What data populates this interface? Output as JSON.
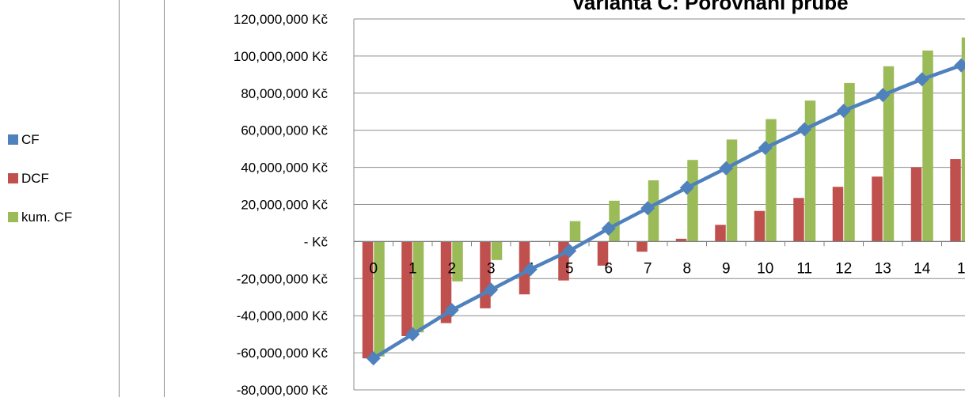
{
  "legend": {
    "items": [
      {
        "label": "CF",
        "color": "#4F81BD"
      },
      {
        "label": "DCF",
        "color": "#C0504D"
      },
      {
        "label": "kum. CF",
        "color": "#9BBB59"
      }
    ]
  },
  "chart_data": {
    "type": "bar",
    "title": "Varianta C: Porovnání  průbě",
    "xlabel": "",
    "ylabel": "",
    "categories": [
      "0",
      "1",
      "2",
      "3",
      "4",
      "5",
      "6",
      "7",
      "8",
      "9",
      "10",
      "11",
      "12",
      "13",
      "14",
      "1"
    ],
    "ylim": [
      -80000000,
      120000000
    ],
    "ytick_labels": [
      "120,000,000 Kč",
      "100,000,000 Kč",
      "80,000,000 Kč",
      "60,000,000 Kč",
      "40,000,000 Kč",
      "20,000,000 Kč",
      "- Kč",
      "-20,000,000 Kč",
      "-40,000,000 Kč",
      "-60,000,000 Kč",
      "-80,000,000 Kč"
    ],
    "grid": true,
    "legend_position": "left",
    "series": [
      {
        "name": "CF",
        "kind": "line",
        "color": "#4F81BD",
        "values": [
          -63000000,
          -50000000,
          -37000000,
          -26000000,
          -15000000,
          -5000000,
          7000000,
          18000000,
          29000000,
          39500000,
          50500000,
          60500000,
          70500000,
          79000000,
          87500000,
          95000000
        ]
      },
      {
        "name": "DCF",
        "kind": "bar",
        "color": "#C0504D",
        "values": [
          -63000000,
          -51000000,
          -44000000,
          -36000000,
          -28500000,
          -21000000,
          -13000000,
          -5500000,
          1500000,
          9000000,
          16500000,
          23500000,
          29500000,
          35000000,
          40000000,
          44500000
        ]
      },
      {
        "name": "kum. CF",
        "kind": "bar",
        "color": "#9BBB59",
        "values": [
          -62000000,
          -49000000,
          -21500000,
          -10000000,
          0,
          11000000,
          22000000,
          33000000,
          44000000,
          55000000,
          66000000,
          76000000,
          85500000,
          94500000,
          103000000,
          110000000
        ]
      }
    ]
  }
}
